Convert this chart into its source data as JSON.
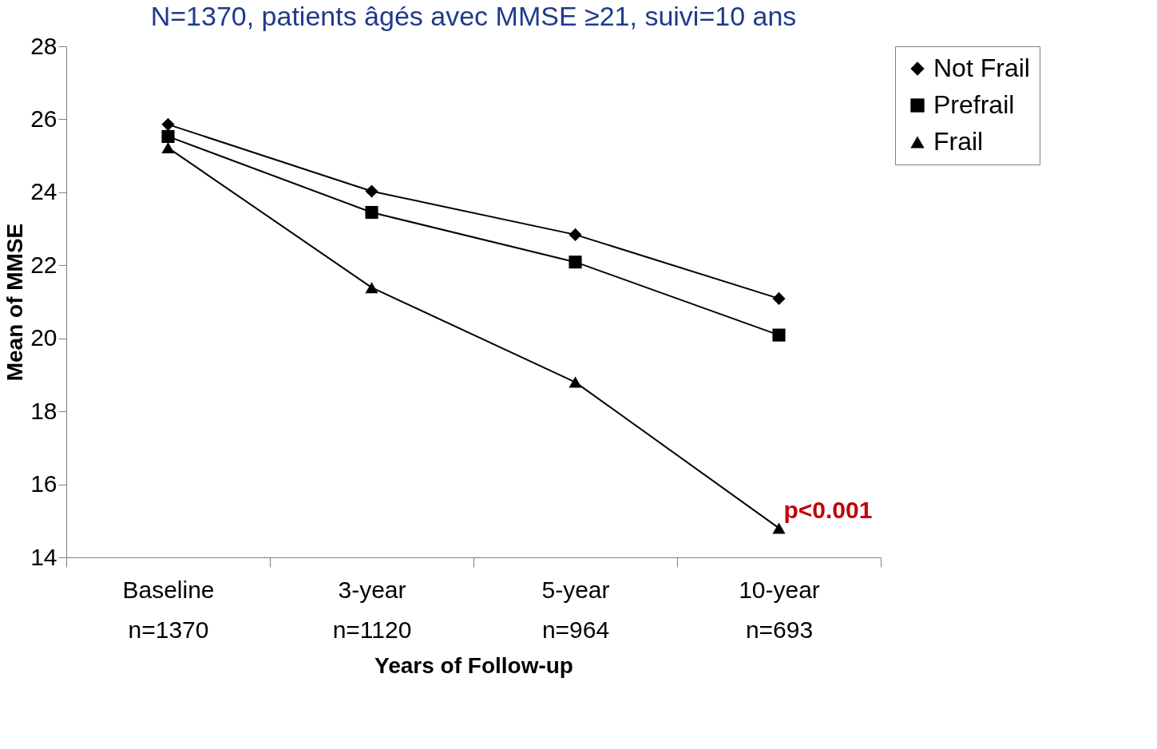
{
  "chart_data": {
    "type": "line",
    "title": "N=1370, patients âgés avec MMSE ≥21, suivi=10 ans",
    "xlabel": "Years of Follow-up",
    "ylabel": "Mean of MMSE",
    "categories": [
      "Baseline\nn=1370",
      "3-year\nn=1120",
      "5-year\nn=964",
      "10-year\nn=693"
    ],
    "series": [
      {
        "name": "Not Frail",
        "color": "#000000",
        "marker": "diamond",
        "values": [
          25.86,
          24.03,
          22.84,
          21.09
        ]
      },
      {
        "name": "Prefrail",
        "color": "#000000",
        "marker": "square",
        "values": [
          25.53,
          23.45,
          22.09,
          20.09
        ]
      },
      {
        "name": "Frail",
        "color": "#000000",
        "marker": "triangle",
        "values": [
          25.22,
          21.39,
          18.8,
          14.8
        ]
      }
    ],
    "ylim": [
      14,
      28
    ],
    "yticks": [
      14,
      16,
      18,
      20,
      22,
      24,
      26,
      28
    ],
    "grid": false,
    "legend": "right",
    "line_style": "solid",
    "annotations": [
      {
        "text": "p<0.001",
        "x": "10-year\nn=693",
        "y": 14.8
      }
    ]
  }
}
